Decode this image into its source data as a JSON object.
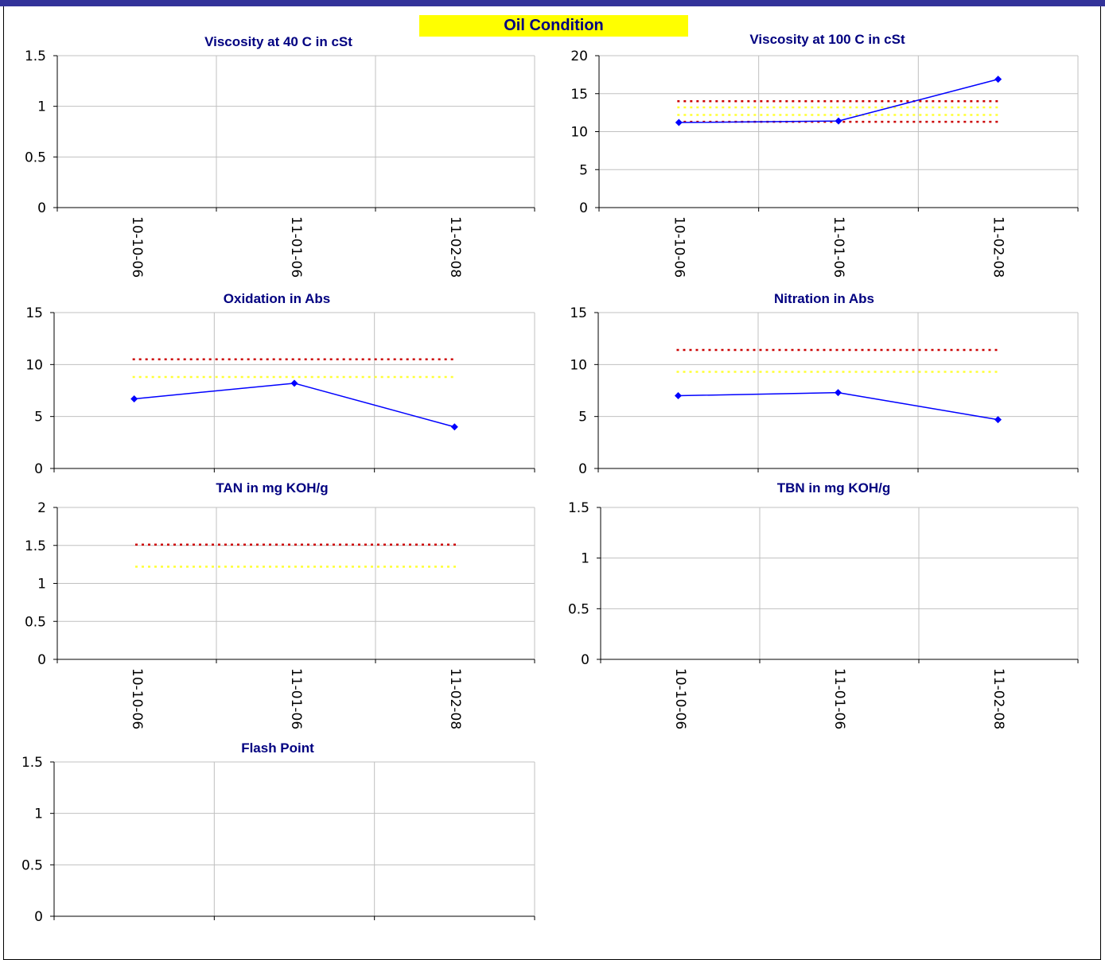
{
  "header": {
    "title": "Oil Condition"
  },
  "colors": {
    "top_bar": "#33339a",
    "header_bg": "#ffff00",
    "title_text": "#000080",
    "series_line": "#0000ff",
    "limit_red": "#cc0000",
    "limit_yellow": "#ffff33",
    "gridline": "#c0c0c0"
  },
  "chart_data": [
    {
      "type": "line",
      "title": "Viscosity at 40 C in cSt",
      "categories": [
        "10-10-06",
        "11-01-06",
        "11-02-08"
      ],
      "ylim": [
        0,
        1.5
      ],
      "yticks": [
        "0",
        "0.5",
        "1",
        "1.5"
      ],
      "grid": true,
      "series": [],
      "limits": []
    },
    {
      "type": "line",
      "title": "Viscosity at 100 C in cSt",
      "categories": [
        "10-10-06",
        "11-01-06",
        "11-02-08"
      ],
      "ylim": [
        0,
        20
      ],
      "yticks": [
        "0",
        "5",
        "10",
        "15",
        "20"
      ],
      "grid": true,
      "series": [
        {
          "values": [
            11.2,
            11.4,
            16.9
          ]
        }
      ],
      "limits": [
        {
          "level": 14.0,
          "color": "red"
        },
        {
          "level": 13.2,
          "color": "yellow"
        },
        {
          "level": 12.2,
          "color": "yellow"
        },
        {
          "level": 11.3,
          "color": "red"
        }
      ]
    },
    {
      "type": "line",
      "title": "Oxidation in Abs",
      "categories": [
        "10-10-06",
        "11-01-06",
        "11-02-08"
      ],
      "ylim": [
        0,
        15
      ],
      "yticks": [
        "0",
        "5",
        "10",
        "15"
      ],
      "grid": true,
      "series": [
        {
          "values": [
            6.7,
            8.2,
            4.0
          ]
        }
      ],
      "limits": [
        {
          "level": 10.5,
          "color": "red"
        },
        {
          "level": 8.8,
          "color": "yellow"
        }
      ]
    },
    {
      "type": "line",
      "title": "Nitration in Abs",
      "categories": [
        "10-10-06",
        "11-01-06",
        "11-02-08"
      ],
      "ylim": [
        0,
        15
      ],
      "yticks": [
        "0",
        "5",
        "10",
        "15"
      ],
      "grid": true,
      "series": [
        {
          "values": [
            7.0,
            7.3,
            4.7
          ]
        }
      ],
      "limits": [
        {
          "level": 11.4,
          "color": "red"
        },
        {
          "level": 9.3,
          "color": "yellow"
        }
      ]
    },
    {
      "type": "line",
      "title": "TAN in mg KOH/g",
      "categories": [
        "10-10-06",
        "11-01-06",
        "11-02-08"
      ],
      "ylim": [
        0,
        2
      ],
      "yticks": [
        "0",
        "0.5",
        "1",
        "1.5",
        "2"
      ],
      "grid": true,
      "series": [],
      "limits": [
        {
          "level": 1.51,
          "color": "red"
        },
        {
          "level": 1.22,
          "color": "yellow"
        }
      ]
    },
    {
      "type": "line",
      "title": "TBN in mg KOH/g",
      "categories": [
        "10-10-06",
        "11-01-06",
        "11-02-08"
      ],
      "ylim": [
        0,
        1.5
      ],
      "yticks": [
        "0",
        "0.5",
        "1",
        "1.5"
      ],
      "grid": true,
      "series": [],
      "limits": []
    },
    {
      "type": "line",
      "title": "Flash Point",
      "categories": [],
      "ylim": [
        0,
        1.5
      ],
      "yticks": [
        "0",
        "0.5",
        "1",
        "1.5"
      ],
      "grid": true,
      "series": [],
      "limits": []
    }
  ]
}
